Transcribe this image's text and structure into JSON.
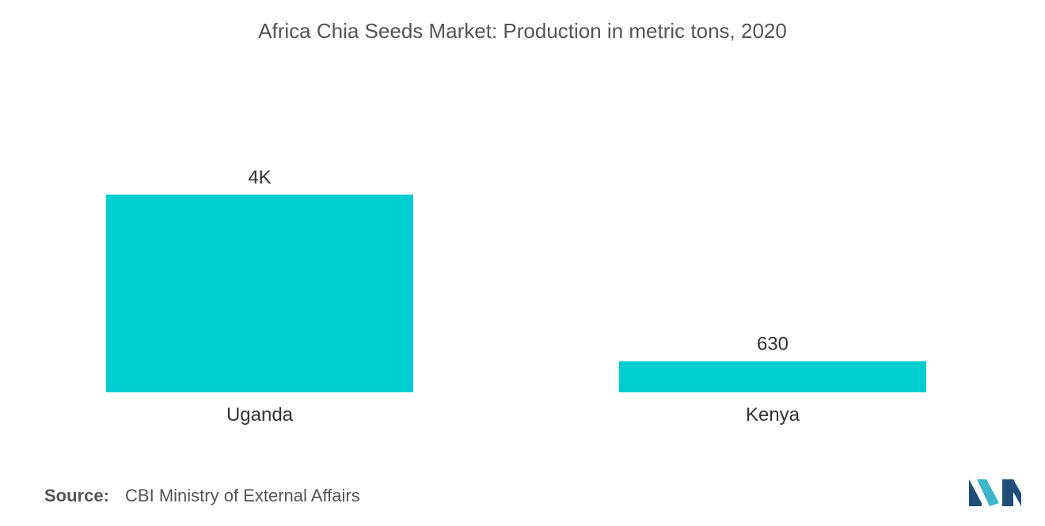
{
  "chart_data": {
    "type": "bar",
    "title": "Africa Chia Seeds Market: Production in metric tons, 2020",
    "categories": [
      "Uganda",
      "Kenya"
    ],
    "values": [
      4000,
      630
    ],
    "value_labels": [
      "4K",
      "630"
    ],
    "xlabel": "",
    "ylabel": "",
    "ylim": [
      0,
      4000
    ],
    "grid": false,
    "legend": "none",
    "bar_color": "#00cdd0"
  },
  "source": {
    "label": "Source:",
    "text": "CBI Ministry of External Affairs"
  },
  "colors": {
    "bar": "#00cdd0",
    "title_text": "#555555",
    "label_text": "#333333",
    "logo_dark": "#1f4e79",
    "logo_light": "#3fb6c9"
  }
}
